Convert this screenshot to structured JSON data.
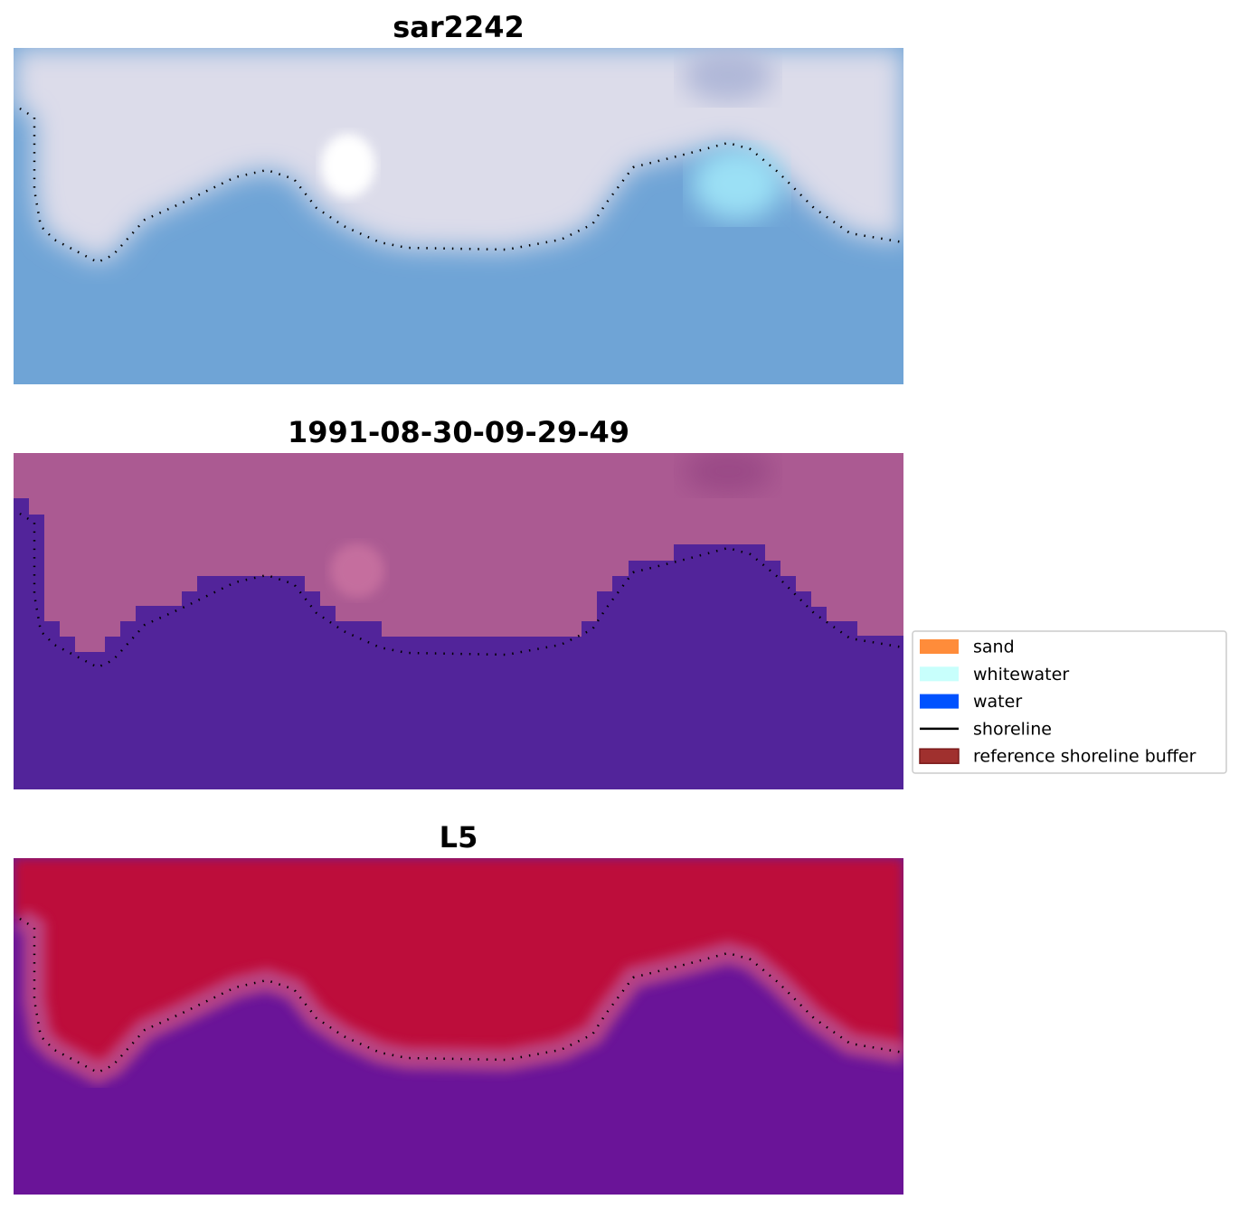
{
  "panels": [
    {
      "title": "sar2242"
    },
    {
      "title": "1991-08-30-09-29-49"
    },
    {
      "title": "L5"
    }
  ],
  "legend": {
    "entries": [
      {
        "label": "sand",
        "color": "#ff8c3a",
        "kind": "patch"
      },
      {
        "label": "whitewater",
        "color": "#c8fffc",
        "kind": "patch"
      },
      {
        "label": "water",
        "color": "#0052ff",
        "kind": "patch"
      },
      {
        "label": "shoreline",
        "color": "#000000",
        "kind": "line"
      },
      {
        "label": "reference shoreline buffer",
        "color": "#a0302e",
        "kind": "patch"
      }
    ]
  }
}
